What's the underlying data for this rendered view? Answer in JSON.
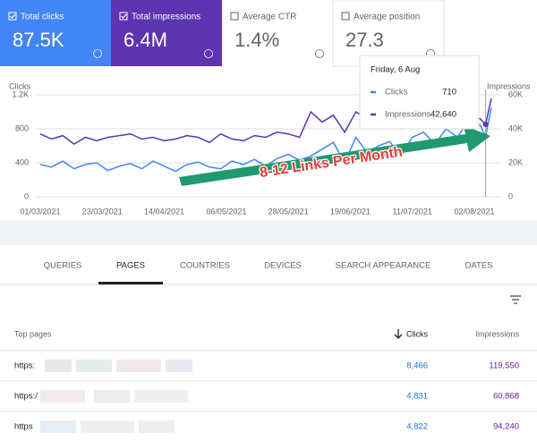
{
  "metrics": [
    {
      "label": "Total clicks",
      "value": "87.5K"
    },
    {
      "label": "Total impressions",
      "value": "6.4M"
    },
    {
      "label": "Average CTR",
      "value": "1.4%"
    },
    {
      "label": "Average position",
      "value": "27.3"
    }
  ],
  "chart_data": {
    "type": "line",
    "y_label": "Clicks",
    "y2_label": "Impressions",
    "annotation": "8-12 Links Per Month",
    "x": [
      "01/03/2021",
      "05/03/2021",
      "09/03/2021",
      "13/03/2021",
      "17/03/2021",
      "21/03/2021",
      "25/03/2021",
      "29/03/2021",
      "02/04/2021",
      "06/04/2021",
      "10/04/2021",
      "14/04/2021",
      "18/04/2021",
      "22/04/2021",
      "26/04/2021",
      "30/04/2021",
      "04/05/2021",
      "08/05/2021",
      "12/05/2021",
      "16/05/2021",
      "20/05/2021",
      "24/05/2021",
      "28/05/2021",
      "01/06/2021",
      "05/06/2021",
      "09/06/2021",
      "13/06/2021",
      "17/06/2021",
      "21/06/2021",
      "25/06/2021",
      "29/06/2021",
      "03/07/2021",
      "07/07/2021",
      "11/07/2021",
      "15/07/2021",
      "19/07/2021",
      "23/07/2021",
      "27/07/2021",
      "31/07/2021",
      "04/08/2021",
      "06/08/2021",
      "08/08/2021"
    ],
    "xticks": [
      "01/03/2021",
      "23/03/2021",
      "14/04/2021",
      "06/05/2021",
      "28/05/2021",
      "19/06/2021",
      "11/07/2021",
      "02/08/2021"
    ],
    "series": [
      {
        "name": "Clicks",
        "color": "#4285f4",
        "values": [
          380,
          350,
          420,
          330,
          380,
          400,
          310,
          360,
          390,
          330,
          420,
          360,
          300,
          380,
          410,
          350,
          330,
          420,
          380,
          440,
          360,
          450,
          500,
          430,
          480,
          560,
          640,
          400,
          700,
          520,
          600,
          650,
          480,
          700,
          760,
          620,
          800,
          700,
          900,
          850,
          710,
          1050
        ]
      },
      {
        "name": "Impressions",
        "color": "#5e35b1",
        "axis": "y2",
        "values": [
          37000,
          34000,
          36000,
          31000,
          35000,
          33000,
          35000,
          36000,
          37000,
          34000,
          35000,
          33000,
          34000,
          36000,
          35000,
          32000,
          37000,
          34000,
          33000,
          36000,
          35000,
          38000,
          37000,
          35000,
          50000,
          44000,
          48000,
          38000,
          50000,
          46000,
          42000,
          45000,
          40000,
          44000,
          47000,
          43000,
          46000,
          44000,
          48000,
          46000,
          42640,
          58000
        ]
      }
    ],
    "ylim": [
      0,
      1200
    ],
    "yticks": [
      0,
      400,
      800,
      {
        "value": 1200,
        "label": "1.2K"
      }
    ],
    "y2lim": [
      0,
      60000
    ],
    "y2ticks": [
      0,
      {
        "value": 20000,
        "label": "20K"
      },
      {
        "value": 40000,
        "label": "40K"
      },
      {
        "value": 60000,
        "label": "60K"
      }
    ],
    "grid": true,
    "tooltip": {
      "title": "Friday, 6 Aug",
      "rows": [
        {
          "name": "Clicks",
          "value": "710"
        },
        {
          "name": "Impressions",
          "value": "42,640"
        }
      ]
    }
  },
  "tabs": [
    "QUERIES",
    "PAGES",
    "COUNTRIES",
    "DEVICES",
    "SEARCH APPEARANCE",
    "DATES"
  ],
  "table": {
    "headers": [
      "Top pages",
      "Clicks",
      "Impressions"
    ],
    "rows": [
      [
        "https:",
        "8,466",
        "119,550"
      ],
      [
        "https:/",
        "4,831",
        "60,868"
      ],
      [
        "https",
        "4,822",
        "94,240"
      ]
    ]
  }
}
